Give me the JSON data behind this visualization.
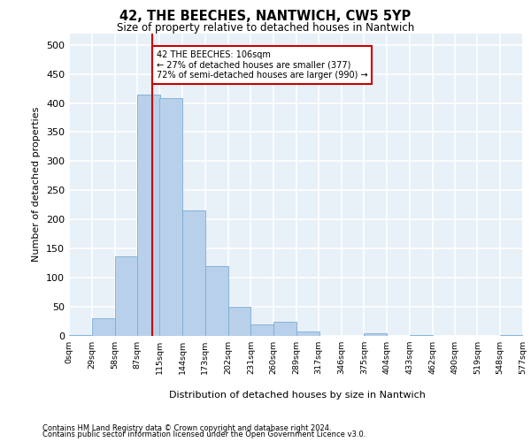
{
  "title": "42, THE BEECHES, NANTWICH, CW5 5YP",
  "subtitle": "Size of property relative to detached houses in Nantwich",
  "xlabel": "Distribution of detached houses by size in Nantwich",
  "ylabel": "Number of detached properties",
  "bar_color": "#b8d0ea",
  "bar_edge_color": "#7aadd4",
  "background_color": "#e8f0f8",
  "grid_color": "#ffffff",
  "annotation_box_color": "#cc0000",
  "property_line_color": "#cc0000",
  "property_value": 106,
  "annotation_text": "42 THE BEECHES: 106sqm\n← 27% of detached houses are smaller (377)\n72% of semi-detached houses are larger (990) →",
  "bin_edges": [
    0,
    29,
    58,
    87,
    115,
    144,
    173,
    202,
    231,
    260,
    289,
    317,
    346,
    375,
    404,
    433,
    462,
    490,
    519,
    548,
    577
  ],
  "bin_labels": [
    "0sqm",
    "29sqm",
    "58sqm",
    "87sqm",
    "115sqm",
    "144sqm",
    "173sqm",
    "202sqm",
    "231sqm",
    "260sqm",
    "289sqm",
    "317sqm",
    "346sqm",
    "375sqm",
    "404sqm",
    "433sqm",
    "462sqm",
    "490sqm",
    "519sqm",
    "548sqm",
    "577sqm"
  ],
  "bar_heights": [
    2,
    30,
    137,
    415,
    408,
    215,
    120,
    50,
    20,
    25,
    8,
    0,
    0,
    5,
    0,
    2,
    0,
    0,
    0,
    2
  ],
  "ylim": [
    0,
    520
  ],
  "yticks": [
    0,
    50,
    100,
    150,
    200,
    250,
    300,
    350,
    400,
    450,
    500
  ],
  "footer_line1": "Contains HM Land Registry data © Crown copyright and database right 2024.",
  "footer_line2": "Contains public sector information licensed under the Open Government Licence v3.0."
}
